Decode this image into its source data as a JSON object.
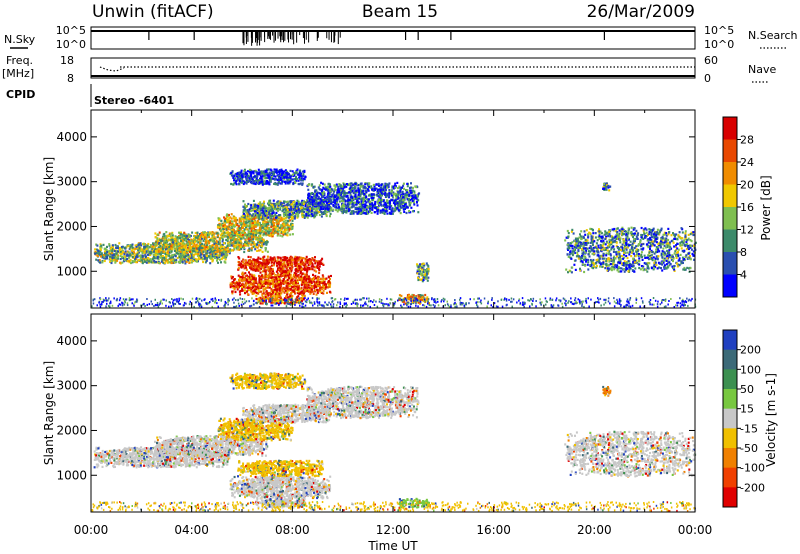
{
  "header": {
    "left_title": "Unwin (fitACF)",
    "center_title": "Beam 15",
    "right_title": "26/Mar/2009"
  },
  "top_panels": {
    "nsky": {
      "label": "N.Sky",
      "tick_top": "10^5",
      "tick_bottom": "10^0",
      "right_label": "N.Search"
    },
    "freq": {
      "label_line1": "Freq.",
      "label_line2": "[MHz]",
      "tick_top": "18",
      "tick_bottom": "8",
      "right_tick_top": "60",
      "right_tick_bottom": "0",
      "right_label": "Nave"
    },
    "cpid": {
      "label": "CPID",
      "value": "Stereo -6401"
    }
  },
  "chart_data": [
    {
      "type": "heatmap",
      "name": "power",
      "xlabel": "",
      "ylabel": "Slant Range [km]",
      "x_ticks": [
        "00:00",
        "04:00",
        "08:00",
        "12:00",
        "16:00",
        "20:00",
        "00:00"
      ],
      "x_range_hours": [
        0,
        24
      ],
      "y_ticks": [
        1000,
        2000,
        3000,
        4000
      ],
      "ylim": [
        180,
        4600
      ],
      "colorbar": {
        "label": "Power [dB]",
        "ticks": [
          "4",
          "8",
          "12",
          "16",
          "20",
          "24",
          "28"
        ],
        "range": [
          0,
          32
        ],
        "colors": [
          "#0000ff",
          "#2a4fb0",
          "#3c8a6a",
          "#7fbf50",
          "#f0c800",
          "#f08c00",
          "#e84800",
          "#d80000"
        ]
      },
      "regions": [
        {
          "t": [
            0.1,
            5.5
          ],
          "r": [
            1200,
            1650
          ],
          "level": 0.4
        },
        {
          "t": [
            2.5,
            7.0
          ],
          "r": [
            1450,
            1900
          ],
          "level": 0.5
        },
        {
          "t": [
            5.0,
            8.0
          ],
          "r": [
            1800,
            2300
          ],
          "level": 0.55
        },
        {
          "t": [
            6.0,
            9.5
          ],
          "r": [
            2200,
            2600
          ],
          "level": 0.3
        },
        {
          "t": [
            8.5,
            13.0
          ],
          "r": [
            2300,
            3000
          ],
          "level": 0.2
        },
        {
          "t": [
            5.5,
            8.5
          ],
          "r": [
            2950,
            3300
          ],
          "level": 0.15
        },
        {
          "t": [
            5.5,
            9.5
          ],
          "r": [
            500,
            1000
          ],
          "level": 0.85
        },
        {
          "t": [
            5.8,
            9.2
          ],
          "r": [
            1000,
            1350
          ],
          "level": 0.9
        },
        {
          "t": [
            6.5,
            8.5
          ],
          "r": [
            300,
            500
          ],
          "level": 0.8
        },
        {
          "t": [
            12.2,
            13.4
          ],
          "r": [
            300,
            500
          ],
          "level": 0.6
        },
        {
          "t": [
            12.9,
            13.4
          ],
          "r": [
            800,
            1200
          ],
          "level": 0.35
        },
        {
          "t": [
            18.8,
            24.0
          ],
          "r": [
            1000,
            2000
          ],
          "level": 0.3
        },
        {
          "t": [
            20.3,
            20.6
          ],
          "r": [
            2800,
            3000
          ],
          "level": 0.3
        }
      ]
    },
    {
      "type": "heatmap",
      "name": "velocity",
      "xlabel": "Time UT",
      "ylabel": "Slant Range [km]",
      "x_ticks": [
        "00:00",
        "04:00",
        "08:00",
        "12:00",
        "16:00",
        "20:00",
        "00:00"
      ],
      "x_range_hours": [
        0,
        24
      ],
      "y_ticks": [
        1000,
        2000,
        3000,
        4000
      ],
      "ylim": [
        180,
        4600
      ],
      "colorbar": {
        "label": "Velocity [m s-1]",
        "ticks": [
          "200",
          "100",
          "50",
          "15",
          "-15",
          "-50",
          "-100",
          "-200"
        ],
        "colors": [
          "#2040c0",
          "#3c6a78",
          "#3c9050",
          "#78c840",
          "#c8c8c8",
          "#f0c000",
          "#f08000",
          "#f04000",
          "#e00000"
        ]
      },
      "regions": [
        {
          "t": [
            0.1,
            5.5
          ],
          "r": [
            1200,
            1650
          ],
          "color": "#c8c8c8"
        },
        {
          "t": [
            2.5,
            7.0
          ],
          "r": [
            1450,
            1900
          ],
          "color": "#c8c8c8"
        },
        {
          "t": [
            5.0,
            8.0
          ],
          "r": [
            1800,
            2300
          ],
          "color": "#f0c000"
        },
        {
          "t": [
            6.0,
            9.5
          ],
          "r": [
            2200,
            2600
          ],
          "color": "#c8c8c8"
        },
        {
          "t": [
            8.5,
            13.0
          ],
          "r": [
            2300,
            3000
          ],
          "color": "#c8c8c8"
        },
        {
          "t": [
            5.5,
            8.5
          ],
          "r": [
            2950,
            3300
          ],
          "color": "#f0c000"
        },
        {
          "t": [
            5.5,
            9.5
          ],
          "r": [
            500,
            1000
          ],
          "color": "#c8c8c8"
        },
        {
          "t": [
            5.8,
            9.2
          ],
          "r": [
            1000,
            1350
          ],
          "color": "#f0c000"
        },
        {
          "t": [
            6.5,
            8.5
          ],
          "r": [
            300,
            500
          ],
          "color": "#c8c8c8"
        },
        {
          "t": [
            12.2,
            13.4
          ],
          "r": [
            300,
            500
          ],
          "color": "#78c840"
        },
        {
          "t": [
            18.8,
            24.0
          ],
          "r": [
            1000,
            2000
          ],
          "color": "#c8c8c8"
        },
        {
          "t": [
            20.3,
            20.6
          ],
          "r": [
            2800,
            3000
          ],
          "color": "#f08000"
        }
      ]
    }
  ]
}
